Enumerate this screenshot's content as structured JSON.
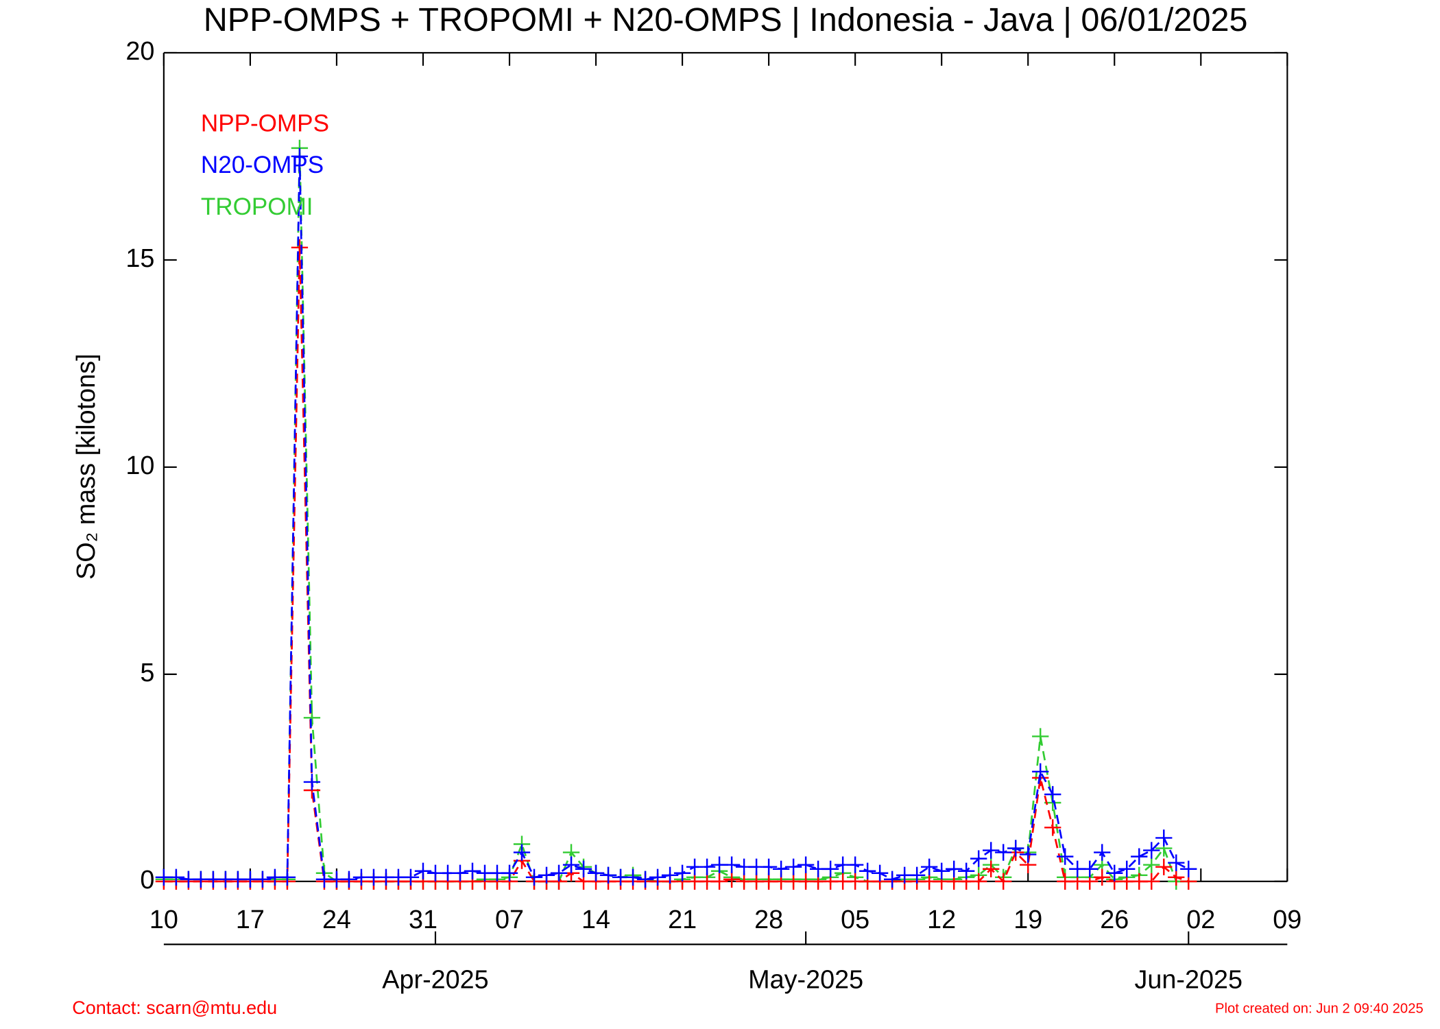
{
  "chart_data": {
    "type": "line",
    "title": "NPP-OMPS + TROPOMI + N20-OMPS | Indonesia - Java | 06/01/2025",
    "ylabel": "SO₂ mass [kilotons]",
    "footer_left": "Contact: scarn@mtu.edu",
    "footer_right": "Plot created on: Jun  2 09:40 2025",
    "x": [
      "2025-03-10",
      "2025-03-11",
      "2025-03-12",
      "2025-03-13",
      "2025-03-14",
      "2025-03-15",
      "2025-03-16",
      "2025-03-17",
      "2025-03-18",
      "2025-03-19",
      "2025-03-20",
      "2025-03-21",
      "2025-03-22",
      "2025-03-23",
      "2025-03-24",
      "2025-03-25",
      "2025-03-26",
      "2025-03-27",
      "2025-03-28",
      "2025-03-29",
      "2025-03-30",
      "2025-03-31",
      "2025-04-01",
      "2025-04-02",
      "2025-04-03",
      "2025-04-04",
      "2025-04-05",
      "2025-04-06",
      "2025-04-07",
      "2025-04-08",
      "2025-04-09",
      "2025-04-10",
      "2025-04-11",
      "2025-04-12",
      "2025-04-13",
      "2025-04-14",
      "2025-04-15",
      "2025-04-16",
      "2025-04-17",
      "2025-04-18",
      "2025-04-19",
      "2025-04-20",
      "2025-04-21",
      "2025-04-22",
      "2025-04-23",
      "2025-04-24",
      "2025-04-25",
      "2025-04-26",
      "2025-04-27",
      "2025-04-28",
      "2025-04-29",
      "2025-04-30",
      "2025-05-01",
      "2025-05-02",
      "2025-05-03",
      "2025-05-04",
      "2025-05-05",
      "2025-05-06",
      "2025-05-07",
      "2025-05-08",
      "2025-05-09",
      "2025-05-10",
      "2025-05-11",
      "2025-05-12",
      "2025-05-13",
      "2025-05-14",
      "2025-05-15",
      "2025-05-16",
      "2025-05-17",
      "2025-05-18",
      "2025-05-19",
      "2025-05-20",
      "2025-05-21",
      "2025-05-22",
      "2025-05-23",
      "2025-05-24",
      "2025-05-25",
      "2025-05-26",
      "2025-05-27",
      "2025-05-28",
      "2025-05-29",
      "2025-05-30",
      "2025-05-31",
      "2025-06-01"
    ],
    "series": [
      {
        "name": "NPP-OMPS",
        "color": "#ff0000",
        "values": [
          0,
          0,
          0,
          0,
          0,
          0,
          0,
          0,
          0,
          0,
          0,
          15.3,
          2.2,
          0,
          0,
          0,
          0,
          0,
          0,
          0,
          0,
          0,
          0,
          0,
          0,
          0,
          0,
          0,
          0,
          0.5,
          0,
          0,
          0,
          0.2,
          0,
          0,
          0,
          0,
          0,
          0,
          0,
          0,
          0,
          0,
          0,
          0,
          0.05,
          0,
          0,
          0,
          0,
          0,
          0,
          0,
          0,
          0,
          0,
          0,
          0,
          0,
          0,
          0,
          0,
          0,
          0,
          0,
          0,
          0.3,
          0,
          0.7,
          0.4,
          2.5,
          1.3,
          0,
          0,
          0,
          0.1,
          0,
          0,
          0,
          0,
          0.35,
          0.1,
          0
        ]
      },
      {
        "name": "N20-OMPS",
        "color": "#0000ff",
        "values": [
          0.1,
          0.1,
          0.05,
          0.05,
          0.05,
          0.05,
          0.05,
          0.05,
          0.05,
          0.1,
          0.1,
          17.5,
          2.4,
          0.05,
          0.05,
          0.05,
          0.1,
          0.1,
          0.1,
          0.1,
          0.1,
          0.25,
          0.2,
          0.2,
          0.2,
          0.25,
          0.2,
          0.2,
          0.2,
          0.7,
          0.1,
          0.15,
          0.2,
          0.4,
          0.3,
          0.2,
          0.15,
          0.1,
          0.1,
          0.05,
          0.1,
          0.15,
          0.2,
          0.35,
          0.35,
          0.4,
          0.4,
          0.35,
          0.35,
          0.35,
          0.3,
          0.35,
          0.4,
          0.3,
          0.3,
          0.4,
          0.4,
          0.25,
          0.2,
          0.05,
          0.15,
          0.15,
          0.35,
          0.25,
          0.3,
          0.25,
          0.55,
          0.75,
          0.7,
          0.8,
          0.65,
          2.65,
          2.1,
          0.6,
          0.3,
          0.3,
          0.7,
          0.2,
          0.3,
          0.6,
          0.75,
          1.05,
          0.45,
          0.3
        ]
      },
      {
        "name": "TROPOMI",
        "color": "#33cc33",
        "values": [
          0.05,
          0.05,
          0.05,
          0.05,
          0.05,
          0.05,
          0.05,
          0.05,
          0.05,
          0.05,
          0.05,
          17.7,
          3.95,
          0.2,
          0,
          0,
          0,
          0,
          0,
          0,
          0,
          0,
          0,
          0,
          0,
          0,
          0.05,
          0.05,
          0.1,
          0.9,
          0,
          0,
          0,
          0.7,
          0.35,
          0.2,
          0.15,
          0.1,
          0.15,
          0.05,
          0,
          0,
          0.05,
          0.1,
          0.1,
          0.25,
          0.1,
          0.05,
          0.05,
          0.05,
          0.05,
          0.05,
          0.05,
          0.05,
          0.1,
          0.2,
          0.1,
          0,
          0,
          0,
          0.05,
          0.05,
          0.1,
          0.05,
          0.05,
          0.1,
          0.15,
          0.4,
          0.1,
          0.8,
          0.7,
          3.5,
          1.9,
          0.1,
          0.1,
          0.1,
          0.4,
          0.05,
          0.1,
          0.15,
          0.4,
          0.8,
          0,
          0
        ]
      }
    ],
    "xlim": [
      "2025-03-10",
      "2025-06-09"
    ],
    "xticks": [
      {
        "value": "2025-03-10",
        "label": "10"
      },
      {
        "value": "2025-03-17",
        "label": "17"
      },
      {
        "value": "2025-03-24",
        "label": "24"
      },
      {
        "value": "2025-03-31",
        "label": "31"
      },
      {
        "value": "2025-04-07",
        "label": "07"
      },
      {
        "value": "2025-04-14",
        "label": "14"
      },
      {
        "value": "2025-04-21",
        "label": "21"
      },
      {
        "value": "2025-04-28",
        "label": "28"
      },
      {
        "value": "2025-05-05",
        "label": "05"
      },
      {
        "value": "2025-05-12",
        "label": "12"
      },
      {
        "value": "2025-05-19",
        "label": "19"
      },
      {
        "value": "2025-05-26",
        "label": "26"
      },
      {
        "value": "2025-06-02",
        "label": "02"
      },
      {
        "value": "2025-06-09",
        "label": "09"
      }
    ],
    "month_ticks": [
      {
        "value": "2025-04-01",
        "label": "Apr-2025"
      },
      {
        "value": "2025-05-01",
        "label": "May-2025"
      },
      {
        "value": "2025-06-01",
        "label": "Jun-2025"
      }
    ],
    "ylim": [
      0,
      20
    ],
    "yticks": [
      0,
      5,
      10,
      15,
      20
    ],
    "legend": "upper left"
  }
}
